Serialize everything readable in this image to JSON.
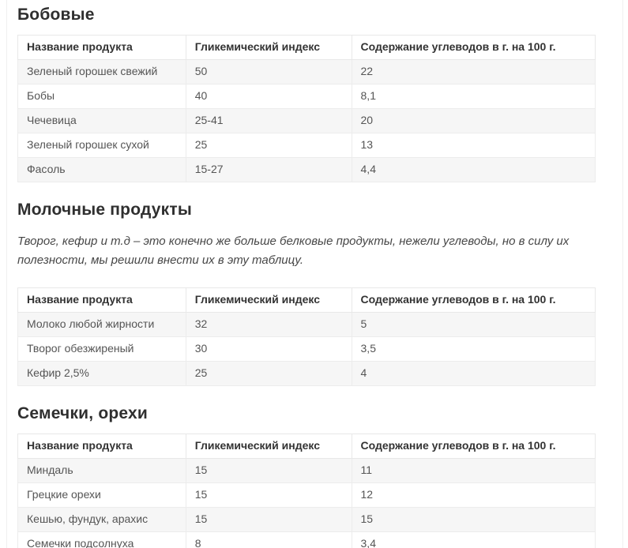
{
  "table_headers": {
    "product": "Название продукта",
    "glycemic_index": "Гликемический индекс",
    "carbs": "Содержание углеводов в г. на 100 г."
  },
  "sections": {
    "legumes": {
      "heading": "Бобовые",
      "rows": [
        [
          "Зеленый горошек свежий",
          "50",
          "22"
        ],
        [
          "Бобы",
          "40",
          "8,1"
        ],
        [
          "Чечевица",
          "25-41",
          "20"
        ],
        [
          "Зеленый горошек сухой",
          "25",
          "13"
        ],
        [
          "Фасоль",
          "15-27",
          "4,4"
        ]
      ]
    },
    "dairy": {
      "heading": "Молочные продукты",
      "note": "Творог, кефир и т.д – это конечно же больше белковые продукты, нежели углеводы, но в силу их полезности, мы решили внести их в эту таблицу.",
      "rows": [
        [
          "Молоко любой жирности",
          "32",
          "5"
        ],
        [
          "Творог обезжиреный",
          "30",
          "3,5"
        ],
        [
          "Кефир 2,5%",
          "25",
          "4"
        ]
      ]
    },
    "seeds_nuts": {
      "heading": "Семечки, орехи",
      "rows": [
        [
          "Миндаль",
          "15",
          "11"
        ],
        [
          "Грецкие орехи",
          "15",
          "12"
        ],
        [
          "Кешью, фундук, арахис",
          "15",
          "15"
        ],
        [
          "Семечки подсолнуха",
          "8",
          "3,4"
        ]
      ]
    }
  },
  "colors": {
    "heading_text": "#2f2f2f",
    "header_text": "#333333",
    "body_text": "#555555",
    "row_stripe": "#f6f6f6",
    "table_border": "#e8e8e8",
    "container_border": "#f0f0f0"
  }
}
